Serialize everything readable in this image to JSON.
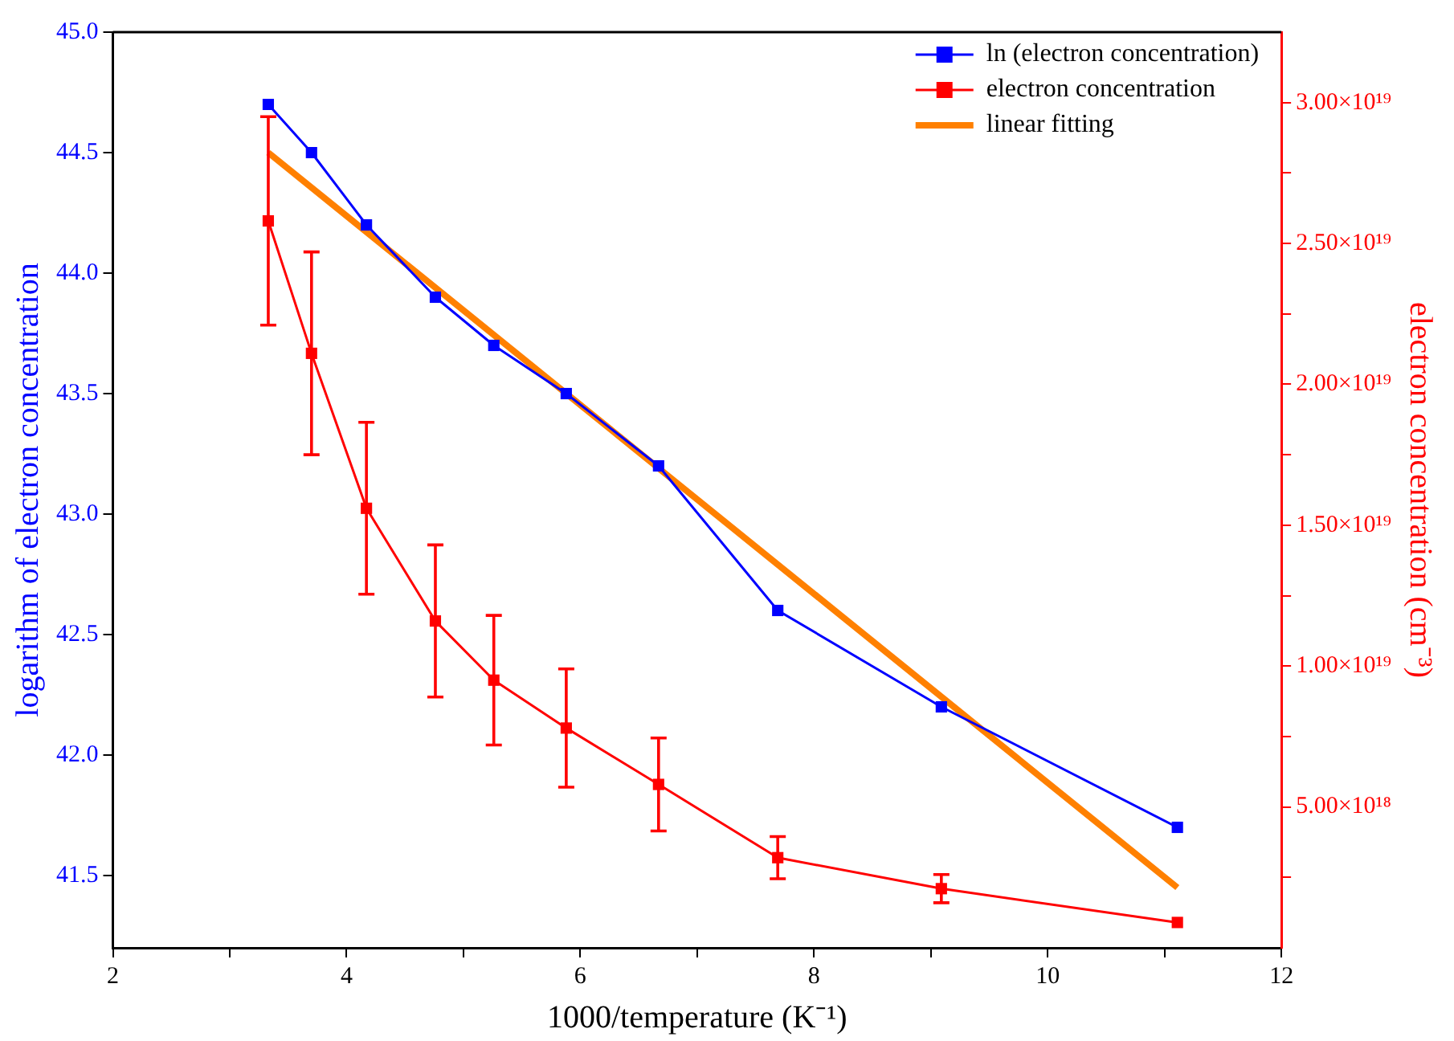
{
  "chart_data": {
    "type": "line",
    "xlabel": "1000/temperature (K⁻¹)",
    "ylabel": "logarithm of electron concentration",
    "y2label": "electron concentration (cm⁻³)",
    "x": [
      3.33,
      3.7,
      4.17,
      4.76,
      5.26,
      5.88,
      6.67,
      7.69,
      9.09,
      11.11
    ],
    "series": [
      {
        "name": "ln (electron concentration)",
        "color": "#0000ff",
        "values": [
          44.7,
          44.5,
          44.2,
          43.9,
          43.7,
          43.5,
          43.2,
          42.6,
          42.2,
          41.7
        ]
      },
      {
        "name": "electron concentration",
        "color": "#ff0000",
        "axis": "y2",
        "values": [
          2.58e+19,
          2.11e+19,
          1.56e+19,
          1.16e+19,
          9.5e+18,
          7.8e+18,
          5.8e+18,
          3.2e+18,
          2.1e+18,
          9e+17
        ],
        "errors": [
          3.7e+18,
          3.6e+18,
          3.05e+18,
          2.7e+18,
          2.3e+18,
          2.1e+18,
          1.65e+18,
          7.5e+17,
          5e+17,
          null
        ]
      },
      {
        "name": "linear fitting",
        "color": "#ff8000",
        "x": [
          3.33,
          11.11
        ],
        "values": [
          44.5,
          41.45
        ],
        "marker": "none"
      }
    ],
    "xlim": [
      2,
      12
    ],
    "xticks": [
      2,
      {
        "value": 3,
        "label": null
      },
      4,
      {
        "value": 5,
        "label": null
      },
      6,
      {
        "value": 7,
        "label": null
      },
      8,
      {
        "value": 9,
        "label": null
      },
      10,
      {
        "value": 11,
        "label": null
      },
      12
    ],
    "ylim": [
      41.2,
      45.0
    ],
    "yticks": [
      {
        "value": 41.5,
        "label": "41.5"
      },
      {
        "value": 42.0,
        "label": "42.0"
      },
      {
        "value": 42.5,
        "label": "42.5"
      },
      {
        "value": 43.0,
        "label": "43.0"
      },
      {
        "value": 43.5,
        "label": "43.5"
      },
      {
        "value": 44.0,
        "label": "44.0"
      },
      {
        "value": 44.5,
        "label": "44.5"
      },
      {
        "value": 45.0,
        "label": "45.0"
      }
    ],
    "y2lim": [
      0,
      3.25e+19
    ],
    "y2ticks": [
      {
        "value": 2.5e+18,
        "label": null
      },
      {
        "value": 5e+18,
        "label": "5.00×10¹⁸"
      },
      {
        "value": 7.5e+18,
        "label": null
      },
      {
        "value": 1e+19,
        "label": "1.00×10¹⁹"
      },
      {
        "value": 1.25e+19,
        "label": null
      },
      {
        "value": 1.5e+19,
        "label": "1.50×10¹⁹"
      },
      {
        "value": 1.75e+19,
        "label": null
      },
      {
        "value": 2e+19,
        "label": "2.00×10¹⁹"
      },
      {
        "value": 2.25e+19,
        "label": null
      },
      {
        "value": 2.5e+19,
        "label": "2.50×10¹⁹"
      },
      {
        "value": 2.75e+19,
        "label": null
      },
      {
        "value": 3e+19,
        "label": "3.00×10¹⁹"
      }
    ],
    "marker": "square",
    "line_style": "solid",
    "legend": "top right",
    "grid": false
  }
}
